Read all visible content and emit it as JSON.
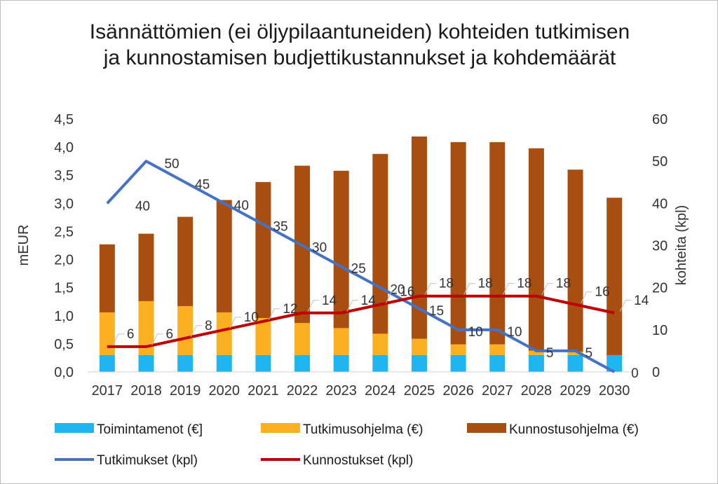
{
  "chart_data": {
    "type": "bar",
    "title": "Isännättömien (ei öljypilaantuneiden) kohteiden tutkimisen ja kunnostamisen budjettikustannukset ja kohdemäärät",
    "categories": [
      "2017",
      "2018",
      "2019",
      "2020",
      "2021",
      "2022",
      "2023",
      "2024",
      "2025",
      "2026",
      "2027",
      "2028",
      "2029",
      "2030"
    ],
    "ylabel": "mEUR",
    "y2label": "kohteita (kpl)",
    "ylim": [
      0,
      4.5
    ],
    "y2lim": [
      0,
      60
    ],
    "yticks": [
      "0,0",
      "0,5",
      "1,0",
      "1,5",
      "2,0",
      "2,5",
      "3,0",
      "3,5",
      "4,0",
      "4,5"
    ],
    "y2ticks": [
      "0",
      "10",
      "20",
      "30",
      "40",
      "50",
      "60"
    ],
    "stacked_bars": [
      {
        "name": "Toimintamenot (€]",
        "color": "#1fb5f0",
        "values": [
          0.3,
          0.3,
          0.3,
          0.3,
          0.3,
          0.3,
          0.3,
          0.3,
          0.3,
          0.3,
          0.3,
          0.3,
          0.3,
          0.3
        ]
      },
      {
        "name": "Tutkimusohjelma (€)",
        "color": "#fbb022",
        "values": [
          0.76,
          0.96,
          0.87,
          0.76,
          0.66,
          0.57,
          0.48,
          0.38,
          0.29,
          0.19,
          0.19,
          0.08,
          0.06,
          0.0
        ]
      },
      {
        "name": "Kunnostusohjelma (€)",
        "color": "#a84e10",
        "values": [
          1.21,
          1.2,
          1.59,
          2.0,
          2.42,
          2.8,
          2.8,
          3.2,
          3.6,
          3.6,
          3.6,
          3.6,
          3.24,
          2.8
        ]
      }
    ],
    "lines": [
      {
        "name": "Tutkimukset (kpl)",
        "color": "#4472c4",
        "values": [
          40,
          50,
          45,
          40,
          35,
          30,
          25,
          20,
          15,
          10,
          10,
          5,
          5,
          0
        ],
        "labels": [
          "40",
          "50",
          "45",
          "40",
          "35",
          "30",
          "25",
          "20",
          "15",
          "10",
          "10",
          "5",
          "5",
          "0"
        ]
      },
      {
        "name": "Kunnostukset (kpl)",
        "color": "#c00000",
        "values": [
          6,
          6,
          8,
          10,
          12,
          14,
          14,
          16,
          18,
          18,
          18,
          18,
          16,
          14
        ],
        "labels": [
          "6",
          "6",
          "8",
          "10",
          "12",
          "14",
          "14",
          "16",
          "18",
          "18",
          "18",
          "18",
          "16",
          "14"
        ]
      }
    ],
    "legend": "bottom",
    "grid": false
  }
}
